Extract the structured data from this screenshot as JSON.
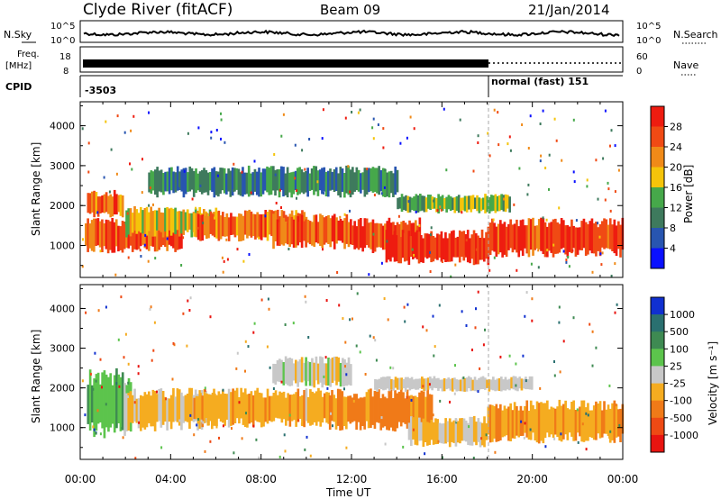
{
  "header": {
    "station": "Clyde River (fitACF)",
    "beam": "Beam 09",
    "date": "21/Jan/2014"
  },
  "top_panel": {
    "nsky_label": "N.Sky",
    "nsearch_label": "N.Search",
    "y_ticks_left": [
      "10^5",
      "10^0"
    ],
    "y_ticks_right": [
      "10^5",
      "10^0"
    ]
  },
  "freq_panel": {
    "freq_label": "Freq.",
    "freq_unit": "[MHz]",
    "nave_label": "Nave",
    "y_ticks_left": [
      "18",
      "8"
    ],
    "y_ticks_right": [
      "60",
      "0"
    ]
  },
  "cpid_panel": {
    "label": "CPID",
    "left_value": "-3503",
    "right_value": "normal (fast) 151"
  },
  "colors": {
    "power_scale": [
      "#0a10ff",
      "#2855b0",
      "#3e7a5d",
      "#46a84a",
      "#f5c40a",
      "#f08a18",
      "#f04a14",
      "#ee1c10"
    ],
    "velocity_scale": [
      "#1030d0",
      "#2a7070",
      "#3e8a52",
      "#5cc44c",
      "#c8c8c8",
      "#f5ac20",
      "#f07a18",
      "#ee4a14",
      "#e81410"
    ]
  },
  "chart_data": [
    {
      "type": "heatmap",
      "panel": "power",
      "xlabel": "Time UT",
      "ylabel": "Slant Range [km]",
      "x_ticks": [
        "00:00",
        "04:00",
        "08:00",
        "12:00",
        "16:00",
        "20:00",
        "00:00"
      ],
      "y_ticks": [
        "1000",
        "2000",
        "3000",
        "4000"
      ],
      "ylim": [
        200,
        4600
      ],
      "colorbar": {
        "label": "Power [dB]",
        "ticks": [
          "4",
          "8",
          "12",
          "16",
          "20",
          "24",
          "28"
        ],
        "range": [
          0,
          32
        ]
      },
      "bands": [
        {
          "x": [
            0.3,
            1.9
          ],
          "y": [
            1700,
            2400
          ],
          "level": 24
        },
        {
          "x": [
            0.2,
            4.5
          ],
          "y": [
            800,
            1700
          ],
          "level": 26
        },
        {
          "x": [
            2.0,
            6.0
          ],
          "y": [
            1200,
            2000
          ],
          "level": 18
        },
        {
          "x": [
            5.0,
            10.0
          ],
          "y": [
            1100,
            1900
          ],
          "level": 24
        },
        {
          "x": [
            8.5,
            12.0
          ],
          "y": [
            900,
            1800
          ],
          "level": 26
        },
        {
          "x": [
            12.0,
            15.0
          ],
          "y": [
            800,
            1700
          ],
          "level": 27
        },
        {
          "x": [
            13.5,
            18.0
          ],
          "y": [
            500,
            1400
          ],
          "level": 29
        },
        {
          "x": [
            18.0,
            24.0
          ],
          "y": [
            700,
            1700
          ],
          "level": 28
        },
        {
          "x": [
            3.0,
            14.0
          ],
          "y": [
            2200,
            3000
          ],
          "level": 10
        },
        {
          "x": [
            14.0,
            19.0
          ],
          "y": [
            1800,
            2300
          ],
          "level": 14
        }
      ]
    },
    {
      "type": "heatmap",
      "panel": "velocity",
      "xlabel": "Time UT",
      "ylabel": "Slant Range [km]",
      "x_ticks": [
        "00:00",
        "04:00",
        "08:00",
        "12:00",
        "16:00",
        "20:00",
        "00:00"
      ],
      "y_ticks": [
        "1000",
        "2000",
        "3000",
        "4000"
      ],
      "ylim": [
        200,
        4600
      ],
      "colorbar": {
        "label": "Velocity [m s⁻¹]",
        "ticks": [
          "1000",
          "500",
          "100",
          "25",
          "-25",
          "-100",
          "-500",
          "-1000"
        ],
        "range": [
          -1200,
          1200
        ]
      },
      "bands": [
        {
          "x": [
            0.3,
            2.2
          ],
          "y": [
            700,
            2500
          ],
          "level": 300
        },
        {
          "x": [
            2.0,
            6.0
          ],
          "y": [
            900,
            2000
          ],
          "level": -200
        },
        {
          "x": [
            5.0,
            11.0
          ],
          "y": [
            1000,
            2000
          ],
          "level": -300
        },
        {
          "x": [
            8.5,
            12.0
          ],
          "y": [
            2000,
            2800
          ],
          "level": 0
        },
        {
          "x": [
            11.0,
            15.5
          ],
          "y": [
            900,
            2000
          ],
          "level": -450
        },
        {
          "x": [
            14.5,
            18.0
          ],
          "y": [
            500,
            1300
          ],
          "level": -150
        },
        {
          "x": [
            18.0,
            24.0
          ],
          "y": [
            600,
            1700
          ],
          "level": -350
        },
        {
          "x": [
            13.0,
            20.0
          ],
          "y": [
            1900,
            2300
          ],
          "level": -50
        }
      ]
    }
  ]
}
